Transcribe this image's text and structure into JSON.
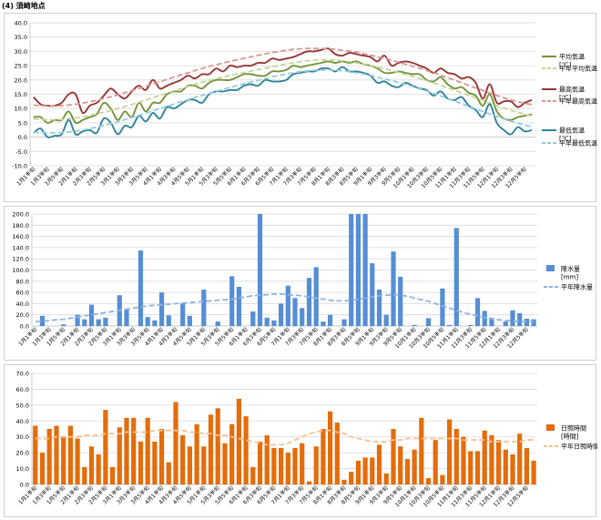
{
  "title": "(4) 須崎地点",
  "months": [
    "1",
    "2",
    "3",
    "4",
    "5",
    "6",
    "7",
    "8",
    "9",
    "10",
    "11",
    "12"
  ],
  "chart_data": [
    {
      "type": "line",
      "x": [
        "1月1半旬",
        "1月2半旬",
        "1月3半旬",
        "1月4半旬",
        "1月5半旬",
        "1月6半旬",
        "2月1半旬",
        "2月2半旬",
        "2月3半旬",
        "2月4半旬",
        "2月5半旬",
        "2月6半旬",
        "3月1半旬",
        "3月2半旬",
        "3月3半旬",
        "3月4半旬",
        "3月5半旬",
        "3月6半旬",
        "4月1半旬",
        "4月2半旬",
        "4月3半旬",
        "4月4半旬",
        "4月5半旬",
        "4月6半旬",
        "5月1半旬",
        "5月2半旬",
        "5月3半旬",
        "5月4半旬",
        "5月5半旬",
        "5月6半旬",
        "6月1半旬",
        "6月2半旬",
        "6月3半旬",
        "6月4半旬",
        "6月5半旬",
        "6月6半旬",
        "7月1半旬",
        "7月2半旬",
        "7月3半旬",
        "7月4半旬",
        "7月5半旬",
        "7月6半旬",
        "8月1半旬",
        "8月2半旬",
        "8月3半旬",
        "8月4半旬",
        "8月5半旬",
        "8月6半旬",
        "9月1半旬",
        "9月2半旬",
        "9月3半旬",
        "9月4半旬",
        "9月5半旬",
        "9月6半旬",
        "10月1半旬",
        "10月2半旬",
        "10月3半旬",
        "10月4半旬",
        "10月5半旬",
        "10月6半旬",
        "11月1半旬",
        "11月2半旬",
        "11月3半旬",
        "11月4半旬",
        "11月5半旬",
        "11月6半旬",
        "12月1半旬",
        "12月2半旬",
        "12月3半旬",
        "12月4半旬",
        "12月5半旬",
        "12月6半旬"
      ],
      "ylim": [
        -10,
        40
      ],
      "yticks": [
        "-10.0",
        "-5.0",
        "0.0",
        "5.0",
        "10.0",
        "15.0",
        "20.0",
        "25.0",
        "30.0",
        "35.0",
        "40.0"
      ],
      "series": [
        {
          "name": "平均気温\n[℃]",
          "color": "#77933c",
          "dashed": false,
          "values": [
            7.0,
            7.0,
            5.0,
            6.0,
            6.0,
            9.0,
            5.0,
            6.0,
            7.0,
            8.0,
            12.0,
            10.0,
            6.0,
            9.0,
            7.0,
            12.0,
            9.0,
            12.0,
            12.0,
            15.0,
            16.0,
            16.0,
            18.0,
            18.0,
            17.0,
            19.0,
            20.0,
            20.0,
            20.0,
            21.0,
            22.0,
            22.0,
            21.5,
            21.5,
            23.0,
            23.0,
            23.5,
            25.0,
            24.5,
            25.0,
            25.5,
            26.0,
            26.5,
            26.0,
            26.5,
            26.0,
            26.5,
            25.5,
            25.0,
            24.0,
            22.5,
            22.5,
            23.0,
            22.5,
            22.0,
            22.0,
            20.0,
            19.5,
            21.0,
            18.5,
            17.0,
            17.5,
            15.5,
            14.5,
            11.0,
            15.0,
            9.0,
            6.5,
            6.0,
            7.0,
            7.5,
            8.0
          ]
        },
        {
          "name": "平年平均気温",
          "color": "#c3d69b",
          "dashed": true,
          "values": [
            6.4,
            6.2,
            6.1,
            6.1,
            6.2,
            6.4,
            6.7,
            7.1,
            7.6,
            8.1,
            8.7,
            9.3,
            10.0,
            10.7,
            11.4,
            12.2,
            13.0,
            13.8,
            14.6,
            15.4,
            16.2,
            17.0,
            17.7,
            18.5,
            19.2,
            19.8,
            20.4,
            21.0,
            21.6,
            22.1,
            22.6,
            23.1,
            23.6,
            24.1,
            24.6,
            25.1,
            25.6,
            26.0,
            26.4,
            26.7,
            26.9,
            27.0,
            27.0,
            26.9,
            26.7,
            26.4,
            26.0,
            25.6,
            25.1,
            24.5,
            23.9,
            23.3,
            22.6,
            21.9,
            21.2,
            20.5,
            19.7,
            18.9,
            18.1,
            17.2,
            16.4,
            15.5,
            14.6,
            13.7,
            12.8,
            11.9,
            11.0,
            10.2,
            9.4,
            8.7,
            8.0,
            7.4
          ]
        },
        {
          "name": "最高気温\n[℃]",
          "color": "#953735",
          "dashed": false,
          "values": [
            14.0,
            11.5,
            11.0,
            11.0,
            12.0,
            15.0,
            15.0,
            8.5,
            11.0,
            12.0,
            14.5,
            17.0,
            15.0,
            13.5,
            16.0,
            18.0,
            16.5,
            20.0,
            17.0,
            18.0,
            19.0,
            20.0,
            21.5,
            20.5,
            22.0,
            22.0,
            24.0,
            23.0,
            25.0,
            24.5,
            25.0,
            25.0,
            26.0,
            26.0,
            27.5,
            27.0,
            27.5,
            28.0,
            29.0,
            30.0,
            30.0,
            30.5,
            31.0,
            29.0,
            28.5,
            29.5,
            29.0,
            28.5,
            28.0,
            26.5,
            28.5,
            25.0,
            26.0,
            26.5,
            26.0,
            25.0,
            24.0,
            22.5,
            24.0,
            22.5,
            22.0,
            20.5,
            21.0,
            19.0,
            13.5,
            18.5,
            12.0,
            12.5,
            12.5,
            10.5,
            12.0,
            13.0
          ]
        },
        {
          "name": "平年最高気温",
          "color": "#d99694",
          "dashed": true,
          "values": [
            11.2,
            11.0,
            10.9,
            10.9,
            11.0,
            11.2,
            11.5,
            11.9,
            12.4,
            12.9,
            13.5,
            14.1,
            14.8,
            15.5,
            16.2,
            17.0,
            17.8,
            18.6,
            19.4,
            20.2,
            21.0,
            21.8,
            22.5,
            23.3,
            24.0,
            24.7,
            25.3,
            25.9,
            26.5,
            27.1,
            27.6,
            28.1,
            28.6,
            29.1,
            29.6,
            30.0,
            30.4,
            30.7,
            30.9,
            31.0,
            31.0,
            31.0,
            30.9,
            30.7,
            30.4,
            30.1,
            29.7,
            29.2,
            28.7,
            28.1,
            27.5,
            26.9,
            26.2,
            25.5,
            24.8,
            24.1,
            23.3,
            22.5,
            21.7,
            20.8,
            19.9,
            19.0,
            18.1,
            17.2,
            16.3,
            15.4,
            14.6,
            13.8,
            13.0,
            12.4,
            11.8,
            11.4
          ]
        },
        {
          "name": "最低気温\n[℃]",
          "color": "#31849b",
          "dashed": false,
          "values": [
            1.5,
            3.0,
            0.0,
            0.5,
            1.0,
            6.0,
            1.0,
            2.0,
            2.5,
            1.5,
            6.5,
            5.0,
            1.0,
            4.0,
            3.5,
            7.5,
            5.5,
            8.5,
            6.5,
            10.5,
            10.0,
            11.5,
            13.0,
            13.0,
            12.0,
            15.0,
            16.0,
            16.0,
            16.5,
            16.5,
            18.0,
            18.5,
            18.0,
            20.0,
            19.5,
            19.5,
            20.0,
            22.0,
            22.5,
            23.0,
            23.0,
            24.0,
            24.0,
            23.0,
            24.5,
            23.0,
            23.0,
            22.5,
            21.5,
            19.0,
            19.5,
            18.0,
            17.5,
            19.0,
            18.0,
            17.0,
            16.5,
            14.5,
            16.0,
            13.5,
            13.0,
            14.0,
            11.0,
            9.5,
            7.0,
            11.5,
            5.0,
            2.5,
            1.0,
            3.5,
            2.0,
            2.5
          ]
        },
        {
          "name": "平年最低気温",
          "color": "#93cddd",
          "dashed": true,
          "values": [
            1.8,
            1.6,
            1.5,
            1.5,
            1.6,
            1.8,
            2.1,
            2.5,
            3.0,
            3.5,
            4.1,
            4.7,
            5.4,
            6.1,
            6.8,
            7.6,
            8.4,
            9.2,
            10.0,
            10.8,
            11.6,
            12.4,
            13.1,
            13.9,
            14.6,
            15.3,
            16.0,
            16.7,
            17.4,
            18.0,
            18.7,
            19.3,
            19.9,
            20.5,
            21.1,
            21.6,
            22.1,
            22.5,
            22.9,
            23.2,
            23.4,
            23.5,
            23.5,
            23.4,
            23.2,
            22.9,
            22.5,
            22.1,
            21.6,
            21.0,
            20.4,
            19.8,
            19.1,
            18.4,
            17.7,
            16.9,
            16.1,
            15.3,
            14.4,
            13.5,
            12.6,
            11.7,
            10.8,
            9.9,
            9.0,
            8.1,
            7.2,
            6.4,
            5.6,
            4.9,
            4.2,
            3.6
          ]
        }
      ]
    },
    {
      "type": "bar",
      "x": [
        "1月1半旬",
        "1月2半旬",
        "1月3半旬",
        "1月4半旬",
        "1月5半旬",
        "1月6半旬",
        "2月1半旬",
        "2月2半旬",
        "2月3半旬",
        "2月4半旬",
        "2月5半旬",
        "2月6半旬",
        "3月1半旬",
        "3月2半旬",
        "3月3半旬",
        "3月4半旬",
        "3月5半旬",
        "3月6半旬",
        "4月1半旬",
        "4月2半旬",
        "4月3半旬",
        "4月4半旬",
        "4月5半旬",
        "4月6半旬",
        "5月1半旬",
        "5月2半旬",
        "5月3半旬",
        "5月4半旬",
        "5月5半旬",
        "5月6半旬",
        "6月1半旬",
        "6月2半旬",
        "6月3半旬",
        "6月4半旬",
        "6月5半旬",
        "6月6半旬",
        "7月1半旬",
        "7月2半旬",
        "7月3半旬",
        "7月4半旬",
        "7月5半旬",
        "7月6半旬",
        "8月1半旬",
        "8月2半旬",
        "8月3半旬",
        "8月4半旬",
        "8月5半旬",
        "8月6半旬",
        "9月1半旬",
        "9月2半旬",
        "9月3半旬",
        "9月4半旬",
        "9月5半旬",
        "9月6半旬",
        "10月1半旬",
        "10月2半旬",
        "10月3半旬",
        "10月4半旬",
        "10月5半旬",
        "10月6半旬",
        "11月1半旬",
        "11月2半旬",
        "11月3半旬",
        "11月4半旬",
        "11月5半旬",
        "11月6半旬",
        "12月1半旬",
        "12月2半旬",
        "12月3半旬",
        "12月4半旬",
        "12月5半旬",
        "12月6半旬"
      ],
      "ylim": [
        0,
        200
      ],
      "yticks": [
        "0.0",
        "20.0",
        "40.0",
        "60.0",
        "80.0",
        "100.0",
        "120.0",
        "140.0",
        "160.0",
        "180.0",
        "200.0"
      ],
      "series": [
        {
          "name": "降水量\n[mm]",
          "color": "#558ed5",
          "kind": "bar",
          "values": [
            0,
            18,
            0,
            0,
            3,
            0,
            20,
            12,
            38,
            12,
            15,
            0,
            55,
            30,
            0,
            135,
            16,
            10,
            60,
            19,
            0,
            40,
            18,
            0,
            65,
            0,
            8,
            0,
            89,
            70,
            0,
            26,
            200,
            15,
            10,
            40,
            72,
            50,
            32,
            86,
            105,
            8,
            20,
            0,
            12,
            200,
            200,
            200,
            112,
            65,
            20,
            133,
            88,
            0,
            2,
            0,
            14,
            0,
            67,
            2,
            175,
            0,
            2,
            50,
            27,
            15,
            0,
            8,
            28,
            23,
            13,
            12
          ]
        },
        {
          "name": "平年降水量",
          "color": "#8eb4e3",
          "kind": "line",
          "dashed": true,
          "values": [
            8,
            9,
            10,
            11,
            12,
            14,
            16,
            18,
            20,
            22,
            24,
            26,
            28,
            30,
            32,
            34,
            36,
            37,
            38,
            39,
            40,
            41,
            42,
            43,
            44,
            45,
            46,
            47,
            48,
            50,
            52,
            54,
            55,
            56,
            57,
            57,
            56,
            55,
            54,
            52,
            50,
            48,
            46,
            45,
            45,
            46,
            48,
            50,
            52,
            54,
            55,
            56,
            55,
            53,
            50,
            47,
            44,
            40,
            36,
            32,
            28,
            24,
            21,
            18,
            15,
            13,
            11,
            10,
            9,
            8,
            8,
            8
          ]
        }
      ]
    },
    {
      "type": "bar",
      "x": [
        "1月1半旬",
        "1月2半旬",
        "1月3半旬",
        "1月4半旬",
        "1月5半旬",
        "1月6半旬",
        "2月1半旬",
        "2月2半旬",
        "2月3半旬",
        "2月4半旬",
        "2月5半旬",
        "2月6半旬",
        "3月1半旬",
        "3月2半旬",
        "3月3半旬",
        "3月4半旬",
        "3月5半旬",
        "3月6半旬",
        "4月1半旬",
        "4月2半旬",
        "4月3半旬",
        "4月4半旬",
        "4月5半旬",
        "4月6半旬",
        "5月1半旬",
        "5月2半旬",
        "5月3半旬",
        "5月4半旬",
        "5月5半旬",
        "5月6半旬",
        "6月1半旬",
        "6月2半旬",
        "6月3半旬",
        "6月4半旬",
        "6月5半旬",
        "6月6半旬",
        "7月1半旬",
        "7月2半旬",
        "7月3半旬",
        "7月4半旬",
        "7月5半旬",
        "7月6半旬",
        "8月1半旬",
        "8月2半旬",
        "8月3半旬",
        "8月4半旬",
        "8月5半旬",
        "8月6半旬",
        "9月1半旬",
        "9月2半旬",
        "9月3半旬",
        "9月4半旬",
        "9月5半旬",
        "9月6半旬",
        "10月1半旬",
        "10月2半旬",
        "10月3半旬",
        "10月4半旬",
        "10月5半旬",
        "10月6半旬",
        "11月1半旬",
        "11月2半旬",
        "11月3半旬",
        "11月4半旬",
        "11月5半旬",
        "11月6半旬",
        "12月1半旬",
        "12月2半旬",
        "12月3半旬",
        "12月4半旬",
        "12月5半旬",
        "12月6半旬"
      ],
      "ylim": [
        0,
        70
      ],
      "yticks": [
        "0.0",
        "10.0",
        "20.0",
        "30.0",
        "40.0",
        "50.0",
        "60.0",
        "70.0"
      ],
      "series": [
        {
          "name": "日照時間\n[時間]",
          "color": "#e46c0a",
          "kind": "bar",
          "values": [
            37,
            20,
            35,
            37,
            30,
            37,
            29,
            11,
            24,
            19,
            47,
            11,
            36,
            42,
            42,
            27,
            42,
            27,
            35,
            14,
            52,
            31,
            24,
            38,
            24,
            44,
            48,
            26,
            38,
            54,
            43,
            11,
            27,
            31,
            23,
            23,
            20,
            23,
            26,
            2,
            24,
            35,
            46,
            39,
            3,
            8,
            15,
            17,
            17,
            25,
            7,
            35,
            24,
            16,
            22,
            42,
            4,
            28,
            6,
            41,
            35,
            30,
            21,
            21,
            34,
            31,
            28,
            22,
            19,
            32,
            23,
            15
          ]
        },
        {
          "name": "平年日照時間",
          "color": "#fac090",
          "kind": "line",
          "dashed": true,
          "values": [
            29,
            29,
            29,
            30,
            30,
            30,
            30,
            31,
            31,
            31,
            32,
            32,
            32,
            33,
            33,
            33,
            33,
            34,
            34,
            34,
            34,
            34,
            33,
            33,
            32,
            32,
            31,
            31,
            30,
            29,
            28,
            27,
            26,
            25,
            25,
            25,
            26,
            28,
            30,
            32,
            33,
            34,
            34,
            33,
            32,
            30,
            29,
            28,
            27,
            27,
            27,
            28,
            28,
            29,
            29,
            29,
            29,
            29,
            29,
            29,
            29,
            28,
            28,
            28,
            28,
            27,
            27,
            27,
            27,
            27,
            28,
            28
          ]
        }
      ]
    }
  ]
}
